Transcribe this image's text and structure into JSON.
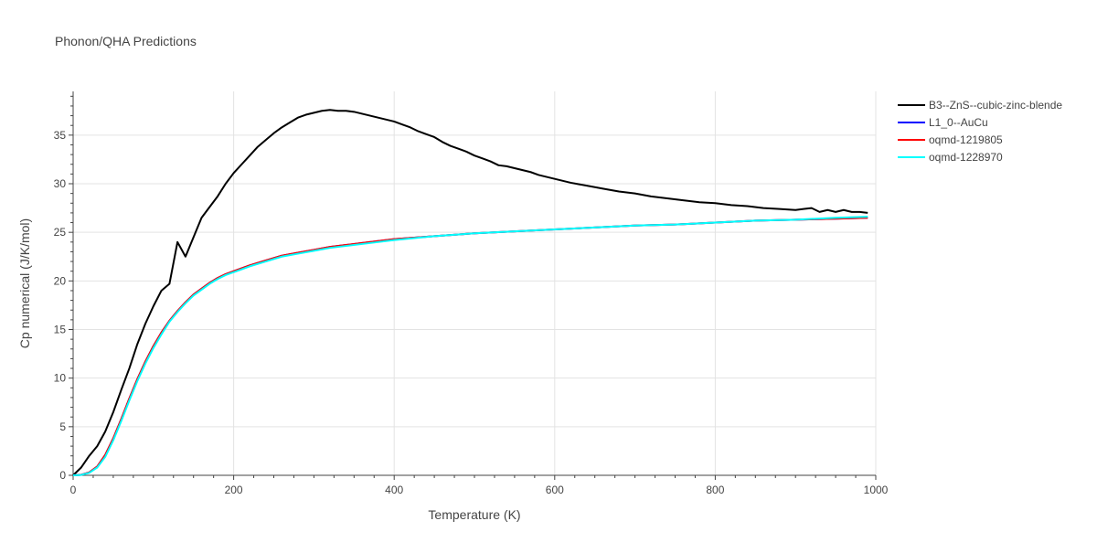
{
  "chart_data": {
    "type": "line",
    "title": "Phonon/QHA Predictions",
    "xlabel": "Temperature (K)",
    "ylabel": "Cp numerical (J/K/mol)",
    "xlim": [
      0,
      1000
    ],
    "ylim": [
      0,
      39.5
    ],
    "xticks": [
      0,
      200,
      400,
      600,
      800,
      1000
    ],
    "yticks": [
      0,
      5,
      10,
      15,
      20,
      25,
      30,
      35
    ],
    "grid": true,
    "legend_position": "top-right",
    "series": [
      {
        "name": "B3--ZnS--cubic-zinc-blende",
        "color": "#000000",
        "x": [
          0,
          10,
          20,
          30,
          40,
          50,
          60,
          70,
          80,
          90,
          100,
          110,
          120,
          130,
          140,
          150,
          160,
          170,
          180,
          190,
          200,
          210,
          220,
          230,
          240,
          250,
          260,
          270,
          280,
          290,
          300,
          310,
          320,
          330,
          340,
          350,
          360,
          370,
          380,
          390,
          400,
          410,
          420,
          430,
          440,
          450,
          460,
          470,
          480,
          490,
          500,
          510,
          520,
          530,
          540,
          550,
          560,
          570,
          580,
          590,
          600,
          620,
          640,
          660,
          680,
          700,
          720,
          740,
          760,
          780,
          800,
          820,
          840,
          860,
          880,
          900,
          910,
          920,
          930,
          940,
          950,
          960,
          970,
          980,
          990
        ],
        "y": [
          0,
          0.8,
          2.0,
          3.0,
          4.5,
          6.5,
          8.8,
          11.0,
          13.5,
          15.6,
          17.4,
          19.0,
          19.7,
          24.0,
          22.5,
          24.5,
          26.5,
          27.6,
          28.7,
          30.0,
          31.1,
          32.0,
          32.9,
          33.8,
          34.5,
          35.2,
          35.8,
          36.3,
          36.8,
          37.1,
          37.3,
          37.5,
          37.6,
          37.5,
          37.5,
          37.4,
          37.2,
          37.0,
          36.8,
          36.6,
          36.4,
          36.1,
          35.8,
          35.4,
          35.1,
          34.8,
          34.3,
          33.9,
          33.6,
          33.3,
          32.9,
          32.6,
          32.3,
          31.9,
          31.8,
          31.6,
          31.4,
          31.2,
          30.9,
          30.7,
          30.5,
          30.1,
          29.8,
          29.5,
          29.2,
          29.0,
          28.7,
          28.5,
          28.3,
          28.1,
          28.0,
          27.8,
          27.7,
          27.5,
          27.4,
          27.3,
          27.4,
          27.5,
          27.1,
          27.3,
          27.1,
          27.3,
          27.1,
          27.1,
          27.0
        ]
      },
      {
        "name": "L1_0--AuCu",
        "color": "#0000ff",
        "x": [
          0,
          10,
          20,
          30,
          40,
          50,
          60,
          70,
          80,
          90,
          100,
          110,
          120,
          130,
          140,
          150,
          160,
          170,
          180,
          190,
          200,
          220,
          240,
          260,
          280,
          300,
          320,
          340,
          360,
          380,
          400,
          450,
          500,
          550,
          600,
          650,
          700,
          750,
          800,
          850,
          900,
          950,
          990
        ],
        "y": [
          0,
          0.05,
          0.3,
          0.9,
          2.1,
          3.8,
          5.8,
          7.9,
          9.9,
          11.7,
          13.3,
          14.7,
          15.9,
          16.9,
          17.8,
          18.6,
          19.2,
          19.8,
          20.3,
          20.7,
          21.0,
          21.6,
          22.1,
          22.6,
          22.9,
          23.2,
          23.5,
          23.7,
          23.9,
          24.1,
          24.3,
          24.6,
          24.9,
          25.1,
          25.3,
          25.5,
          25.7,
          25.8,
          26.0,
          26.2,
          26.3,
          26.4,
          26.5
        ]
      },
      {
        "name": "oqmd-1219805",
        "color": "#ff0000",
        "x": [
          0,
          10,
          20,
          30,
          40,
          50,
          60,
          70,
          80,
          90,
          100,
          110,
          120,
          130,
          140,
          150,
          160,
          170,
          180,
          190,
          200,
          220,
          240,
          260,
          280,
          300,
          320,
          340,
          360,
          380,
          400,
          450,
          500,
          550,
          600,
          650,
          700,
          750,
          800,
          850,
          900,
          950,
          990
        ],
        "y": [
          0,
          0.05,
          0.3,
          0.9,
          2.1,
          3.8,
          5.8,
          7.9,
          9.9,
          11.7,
          13.3,
          14.7,
          15.9,
          16.9,
          17.8,
          18.6,
          19.2,
          19.8,
          20.3,
          20.7,
          21.0,
          21.6,
          22.1,
          22.6,
          22.9,
          23.2,
          23.5,
          23.7,
          23.9,
          24.1,
          24.3,
          24.6,
          24.9,
          25.1,
          25.3,
          25.5,
          25.7,
          25.8,
          26.0,
          26.2,
          26.3,
          26.4,
          26.5
        ]
      },
      {
        "name": "oqmd-1228970",
        "color": "#00ffff",
        "x": [
          0,
          10,
          20,
          30,
          40,
          50,
          60,
          70,
          80,
          90,
          100,
          110,
          120,
          130,
          140,
          150,
          160,
          170,
          180,
          190,
          200,
          220,
          240,
          260,
          280,
          300,
          320,
          340,
          360,
          380,
          400,
          450,
          500,
          550,
          600,
          650,
          700,
          750,
          800,
          850,
          900,
          950,
          990
        ],
        "y": [
          0,
          0.04,
          0.25,
          0.8,
          1.9,
          3.6,
          5.6,
          7.7,
          9.7,
          11.5,
          13.1,
          14.5,
          15.8,
          16.8,
          17.7,
          18.5,
          19.1,
          19.7,
          20.2,
          20.6,
          20.9,
          21.5,
          22.0,
          22.5,
          22.8,
          23.1,
          23.4,
          23.6,
          23.8,
          24.0,
          24.2,
          24.6,
          24.9,
          25.1,
          25.3,
          25.5,
          25.7,
          25.8,
          26.0,
          26.2,
          26.3,
          26.5,
          26.6
        ]
      }
    ]
  }
}
